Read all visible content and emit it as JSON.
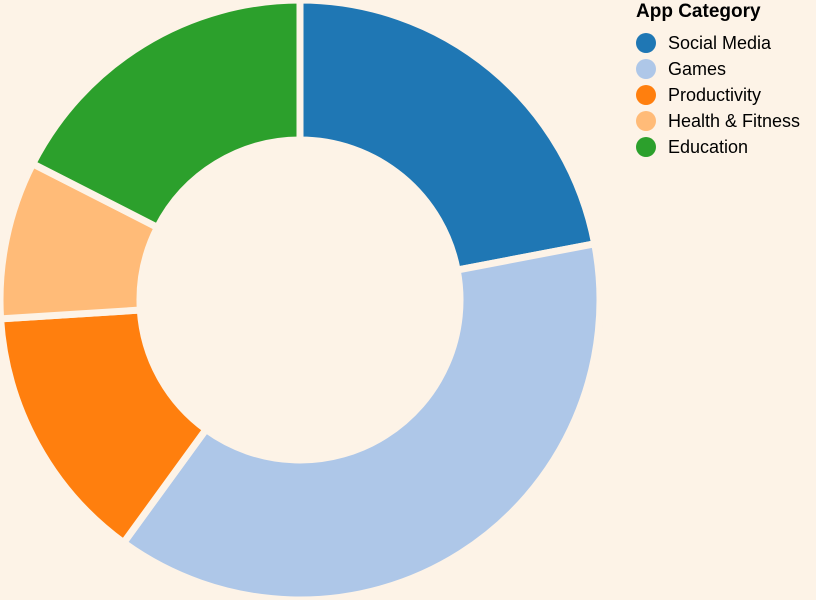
{
  "chart_data": {
    "type": "pie",
    "variant": "donut",
    "legend_title": "App Category",
    "legend_position": "top-right",
    "categories": [
      "Social Media",
      "Games",
      "Productivity",
      "Health & Fitness",
      "Education"
    ],
    "values": [
      22,
      38,
      14,
      8.5,
      17.5
    ],
    "colors": [
      "#1f77b4",
      "#aec7e8",
      "#ff7f0e",
      "#ffbb78",
      "#2ca02c"
    ]
  }
}
